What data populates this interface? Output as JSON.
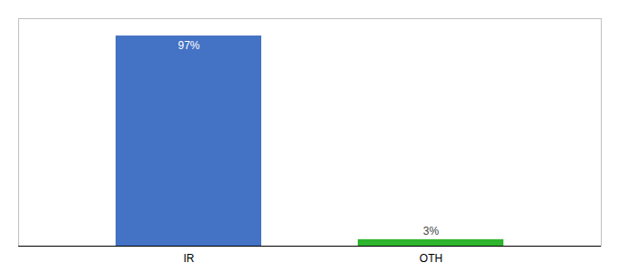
{
  "chart_data": {
    "type": "bar",
    "categories": [
      "IR",
      "OTH"
    ],
    "values": [
      97,
      3
    ],
    "value_labels": [
      "97%",
      "3%"
    ],
    "colors": [
      "#4472c4",
      "#2db52d"
    ],
    "ylim": [
      0,
      105
    ],
    "data_labels": true,
    "tick_labels": "x"
  }
}
